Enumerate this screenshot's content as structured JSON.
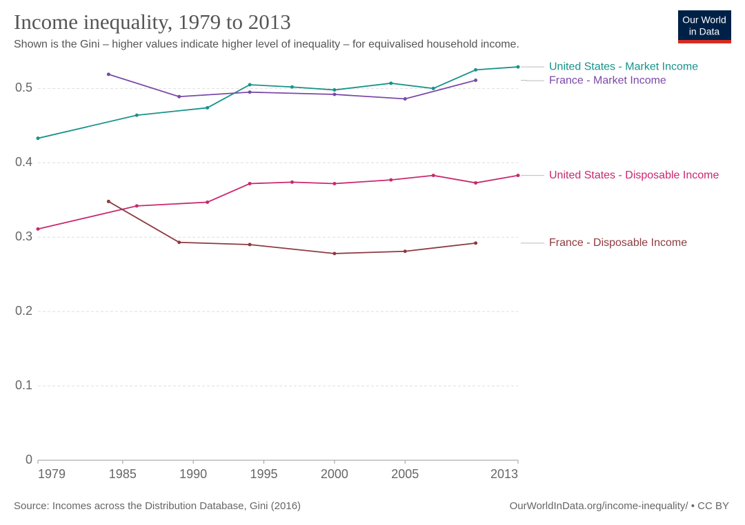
{
  "chart_data": {
    "type": "line",
    "title": "Income inequality, 1979 to 2013",
    "subtitle": "Shown is the Gini – higher values indicate higher level of inequality – for equivalised household income.",
    "logo": [
      "Our World",
      "in Data"
    ],
    "source": "Source: Incomes across the Distribution Database, Gini (2016)",
    "credit": "OurWorldInData.org/income-inequality/ • CC BY",
    "xlim": [
      1979,
      2013
    ],
    "xticks": [
      1979,
      1985,
      1990,
      1995,
      2000,
      2005,
      2013
    ],
    "ylim": [
      0,
      0.53
    ],
    "yticks": [
      0,
      0.1,
      0.2,
      0.3,
      0.4,
      0.5
    ],
    "grid": true,
    "series": [
      {
        "name": "United States - Market Income",
        "color": "#17938a",
        "x": [
          1979,
          1986,
          1991,
          1994,
          1997,
          2000,
          2004,
          2007,
          2010,
          2013
        ],
        "values": [
          0.433,
          0.464,
          0.474,
          0.505,
          0.502,
          0.498,
          0.507,
          0.5,
          0.525,
          0.529
        ]
      },
      {
        "name": "France - Market Income",
        "color": "#7a48a8",
        "x": [
          1984,
          1989,
          1994,
          2000,
          2005,
          2010
        ],
        "values": [
          0.519,
          0.489,
          0.495,
          0.492,
          0.486,
          0.511
        ]
      },
      {
        "name": "United States - Disposable Income",
        "color": "#c8286e",
        "x": [
          1979,
          1986,
          1991,
          1994,
          1997,
          2000,
          2004,
          2007,
          2010,
          2013
        ],
        "values": [
          0.311,
          0.342,
          0.347,
          0.372,
          0.374,
          0.372,
          0.377,
          0.383,
          0.373,
          0.383
        ]
      },
      {
        "name": "France - Disposable Income",
        "color": "#8c3a3f",
        "x": [
          1984,
          1989,
          1994,
          2000,
          2005,
          2010
        ],
        "values": [
          0.348,
          0.293,
          0.29,
          0.278,
          0.281,
          0.292
        ]
      }
    ]
  }
}
